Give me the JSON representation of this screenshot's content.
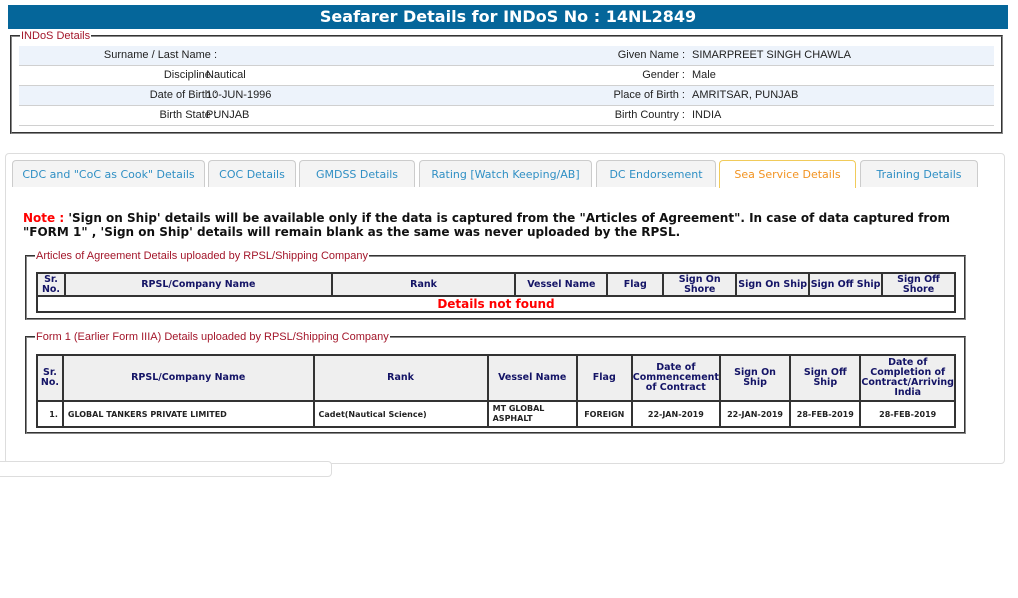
{
  "header": {
    "title": "Seafarer Details for INDoS No : 14NL2849"
  },
  "indos": {
    "legend": "INDoS Details",
    "rows": [
      {
        "l1": "Surname / Last Name :",
        "v1": "",
        "l2": "Given Name :",
        "v2": "SIMARPREET SINGH CHAWLA"
      },
      {
        "l1": "Discipline :",
        "v1": "Nautical",
        "l2": "Gender :",
        "v2": "Male"
      },
      {
        "l1": "Date of Birth :",
        "v1": "10-JUN-1996",
        "l2": "Place of Birth :",
        "v2": "AMRITSAR, PUNJAB"
      },
      {
        "l1": "Birth State :",
        "v1": "PUNJAB",
        "l2": "Birth Country :",
        "v2": "INDIA"
      }
    ]
  },
  "tabs": [
    {
      "label": "CDC and \"CoC as Cook\" Details"
    },
    {
      "label": "COC Details"
    },
    {
      "label": "GMDSS Details"
    },
    {
      "label": "Rating [Watch Keeping/AB]"
    },
    {
      "label": "DC Endorsement"
    },
    {
      "label": "Sea Service Details",
      "active": true
    },
    {
      "label": "Training Details"
    }
  ],
  "note": {
    "label": "Note :",
    "text": " 'Sign on Ship' details will be available only if the data is captured from the \"Articles of Agreement\". In case of data captured from \"FORM 1\" , 'Sign on Ship' details will remain blank as the same was never uploaded by the RPSL."
  },
  "articles": {
    "legend": "Articles of Agreement Details uploaded by RPSL/Shipping Company",
    "headers": [
      "Sr. No.",
      "RPSL/Company Name",
      "Rank",
      "Vessel Name",
      "Flag",
      "Sign On Shore",
      "Sign On Ship",
      "Sign Off Ship",
      "Sign Off Shore"
    ],
    "empty_message": "Details not found"
  },
  "form1": {
    "legend": "Form 1 (Earlier Form IIIA) Details uploaded by RPSL/Shipping Company",
    "headers": [
      "Sr. No.",
      "RPSL/Company Name",
      "Rank",
      "Vessel Name",
      "Flag",
      "Date of Commencement of Contract",
      "Sign On Ship",
      "Sign Off Ship",
      "Date of Completion of Contract/Arriving India"
    ],
    "rows": [
      [
        "1.",
        "GLOBAL TANKERS PRIVATE LIMITED",
        "Cadet(Nautical Science)",
        "MT GLOBAL ASPHALT",
        "FOREIGN",
        "22-JAN-2019",
        "22-JAN-2019",
        "28-FEB-2019",
        "28-FEB-2019"
      ]
    ]
  },
  "colors": {
    "header_bg": "#05669a",
    "legend": "#a3162a",
    "tab_text": "#2f8fc4",
    "active_tab": "#f29321",
    "alert": "#ff0000"
  }
}
